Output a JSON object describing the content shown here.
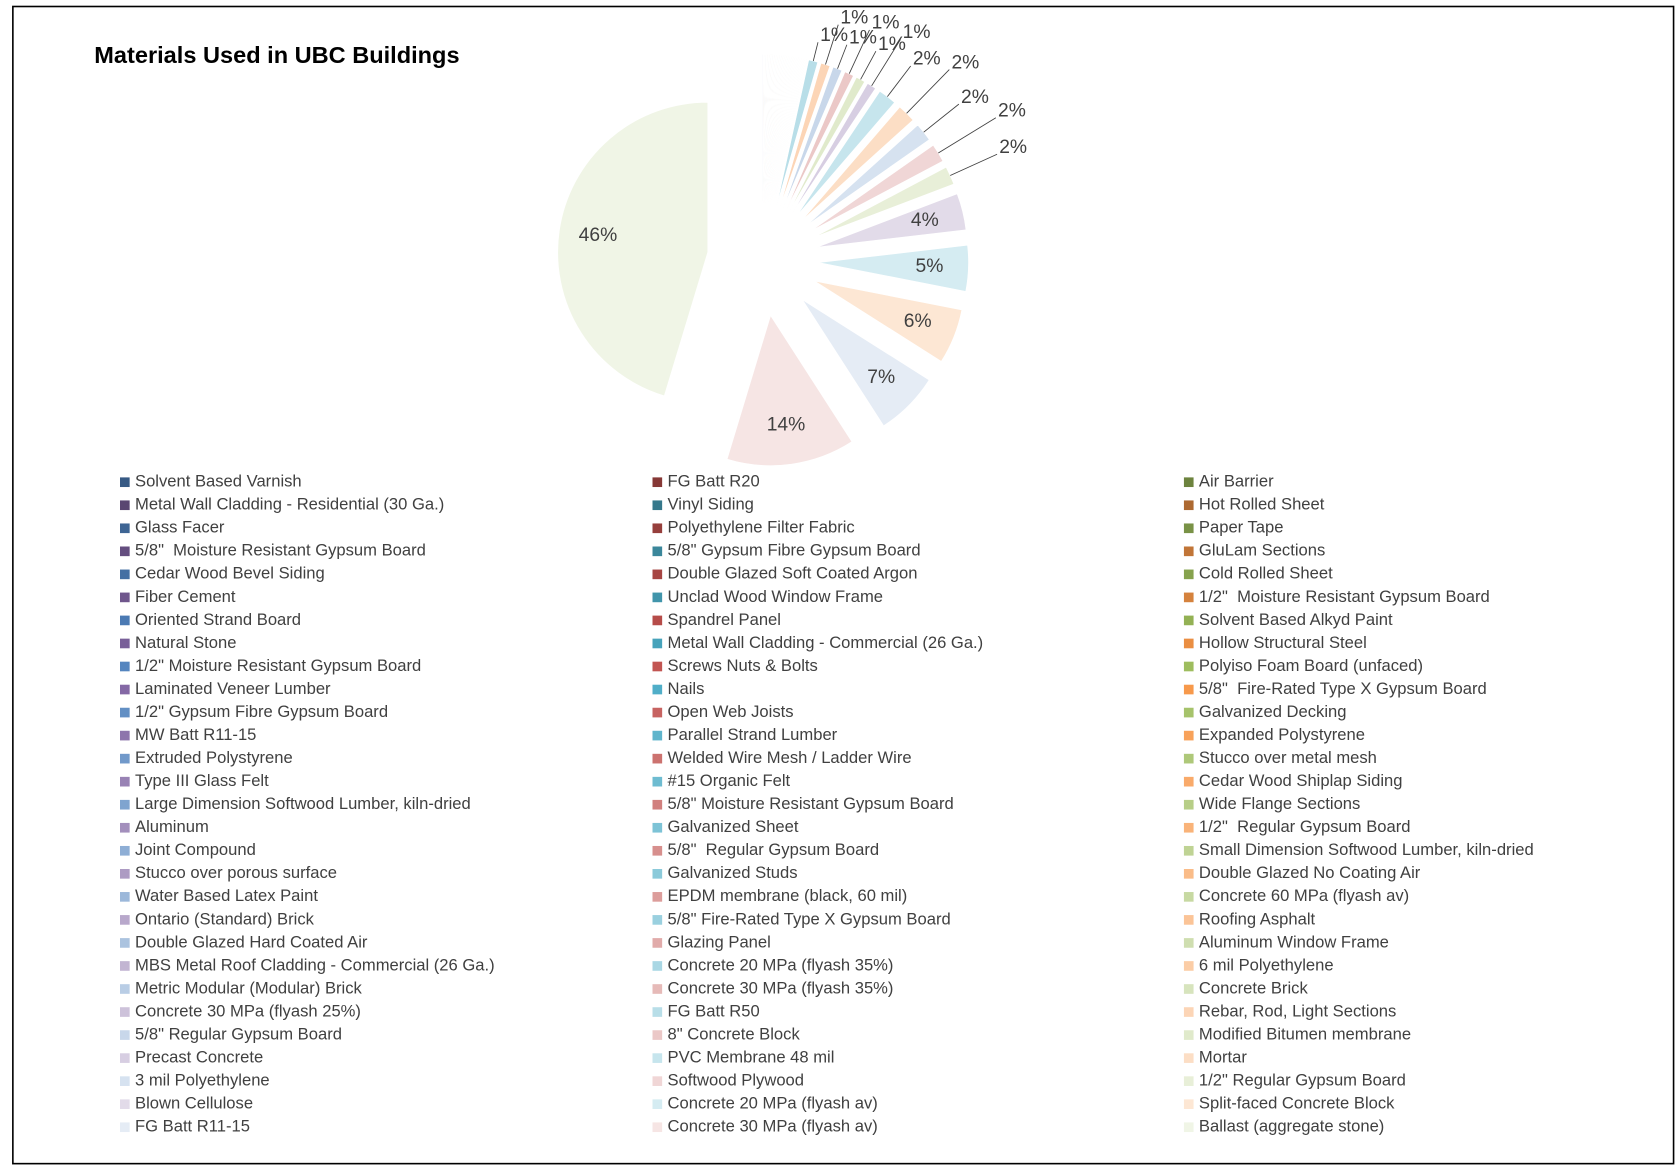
{
  "chart_data": {
    "type": "pie",
    "title": "Materials Used in UBC Buildings",
    "categories": [
      "Solvent Based Varnish",
      "FG Batt R20",
      "Air Barrier",
      "Metal Wall Cladding - Residential (30 Ga.)",
      "Vinyl Siding",
      "Hot Rolled Sheet",
      "Glass Facer",
      "Polyethylene Filter Fabric",
      "Paper Tape",
      "5/8\"  Moisture Resistant Gypsum Board",
      "5/8\" Gypsum Fibre Gypsum Board",
      "GluLam Sections",
      "Cedar Wood Bevel Siding",
      "Double Glazed Soft Coated Argon",
      "Cold Rolled Sheet",
      "Fiber Cement",
      "Unclad Wood Window Frame",
      "1/2\"  Moisture Resistant Gypsum Board",
      "Oriented Strand Board",
      "Spandrel Panel",
      "Solvent Based Alkyd Paint",
      "Natural Stone",
      "Metal Wall Cladding - Commercial (26 Ga.)",
      "Hollow Structural Steel",
      "1/2\" Moisture Resistant Gypsum Board",
      "Screws Nuts & Bolts",
      "Polyiso Foam Board (unfaced)",
      "Laminated Veneer Lumber",
      "Nails",
      "5/8\"  Fire-Rated Type X Gypsum Board",
      "1/2\" Gypsum Fibre Gypsum Board",
      "Open Web Joists",
      "Galvanized Decking",
      "MW Batt R11-15",
      "Parallel Strand Lumber",
      "Expanded Polystyrene",
      "Extruded Polystyrene",
      "Welded Wire Mesh / Ladder Wire",
      "Stucco over metal mesh",
      "Type III Glass Felt",
      "#15 Organic Felt",
      "Cedar Wood Shiplap Siding",
      "Large Dimension Softwood Lumber, kiln-dried",
      "5/8\" Moisture Resistant Gypsum Board",
      "Wide Flange Sections",
      "Aluminum",
      "Galvanized Sheet",
      "1/2\"  Regular Gypsum Board",
      "Joint Compound",
      "5/8\"  Regular Gypsum Board",
      "Small Dimension Softwood Lumber, kiln-dried",
      "Stucco over porous surface",
      "Galvanized Studs",
      "Double Glazed No Coating Air",
      "Water Based Latex Paint",
      "EPDM membrane (black, 60 mil)",
      "Concrete 60 MPa (flyash av)",
      "Ontario (Standard) Brick",
      "5/8\" Fire-Rated Type X Gypsum Board",
      "Roofing Asphalt",
      "Double Glazed Hard Coated Air",
      "Glazing Panel",
      "Aluminum Window Frame",
      "MBS Metal Roof Cladding - Commercial (26 Ga.)",
      "Concrete 20 MPa (flyash 35%)",
      "6 mil Polyethylene",
      "Metric Modular (Modular) Brick",
      "Concrete 30 MPa (flyash 35%)",
      "Concrete Brick",
      "Concrete 30 MPa (flyash 25%)",
      "FG Batt R50",
      "Rebar, Rod, Light Sections",
      "5/8\" Regular Gypsum Board",
      "8\" Concrete Block",
      "Modified Bitumen membrane",
      "Precast Concrete",
      "PVC Membrane 48 mil",
      "Mortar",
      "3 mil Polyethylene",
      "Softwood Plywood",
      "1/2\" Regular Gypsum Board",
      "Blown Cellulose",
      "Concrete 20 MPa (flyash av)",
      "Split-faced Concrete Block",
      "FG Batt R11-15",
      "Concrete 30 MPa (flyash av)",
      "Ballast (aggregate stone)"
    ],
    "values": [
      0.05,
      0.05,
      0.05,
      0.05,
      0.05,
      0.05,
      0.05,
      0.05,
      0.05,
      0.05,
      0.05,
      0.05,
      0.05,
      0.05,
      0.05,
      0.05,
      0.05,
      0.05,
      0.05,
      0.05,
      0.05,
      0.05,
      0.05,
      0.05,
      0.05,
      0.05,
      0.05,
      0.05,
      0.05,
      0.05,
      0.05,
      0.05,
      0.05,
      0.05,
      0.05,
      0.05,
      0.05,
      0.05,
      0.05,
      0.05,
      0.05,
      0.05,
      0.05,
      0.05,
      0.05,
      0.05,
      0.05,
      0.05,
      0.05,
      0.05,
      0.05,
      0.05,
      0.05,
      0.05,
      0.05,
      0.05,
      0.05,
      0.05,
      0.05,
      0.05,
      0.05,
      0.05,
      0.05,
      0.05,
      0.05,
      0.05,
      0.05,
      0.05,
      0.05,
      0.05,
      1,
      1,
      1,
      1,
      1,
      1,
      2,
      2,
      2,
      2,
      2,
      4,
      5,
      6,
      7,
      14,
      46
    ],
    "value_labels": [
      null,
      null,
      null,
      null,
      null,
      null,
      null,
      null,
      null,
      null,
      null,
      null,
      null,
      null,
      null,
      null,
      null,
      null,
      null,
      null,
      null,
      null,
      null,
      null,
      null,
      null,
      null,
      null,
      null,
      null,
      null,
      null,
      null,
      null,
      null,
      null,
      null,
      null,
      null,
      null,
      null,
      null,
      null,
      null,
      null,
      null,
      null,
      null,
      null,
      null,
      null,
      null,
      null,
      null,
      null,
      null,
      null,
      null,
      null,
      null,
      null,
      null,
      null,
      null,
      null,
      null,
      null,
      null,
      null,
      null,
      "1%",
      "1%",
      "1%",
      "1%",
      "1%",
      "1%",
      "2%",
      "2%",
      "2%",
      "2%",
      "2%",
      "4%",
      "5%",
      "6%",
      "7%",
      "14%",
      "46%"
    ],
    "palette": [
      "#4F81BD",
      "#C0504D",
      "#9BBB59",
      "#8064A2",
      "#4BACC6",
      "#F79646"
    ],
    "legend": "bottom",
    "exploded": true
  }
}
